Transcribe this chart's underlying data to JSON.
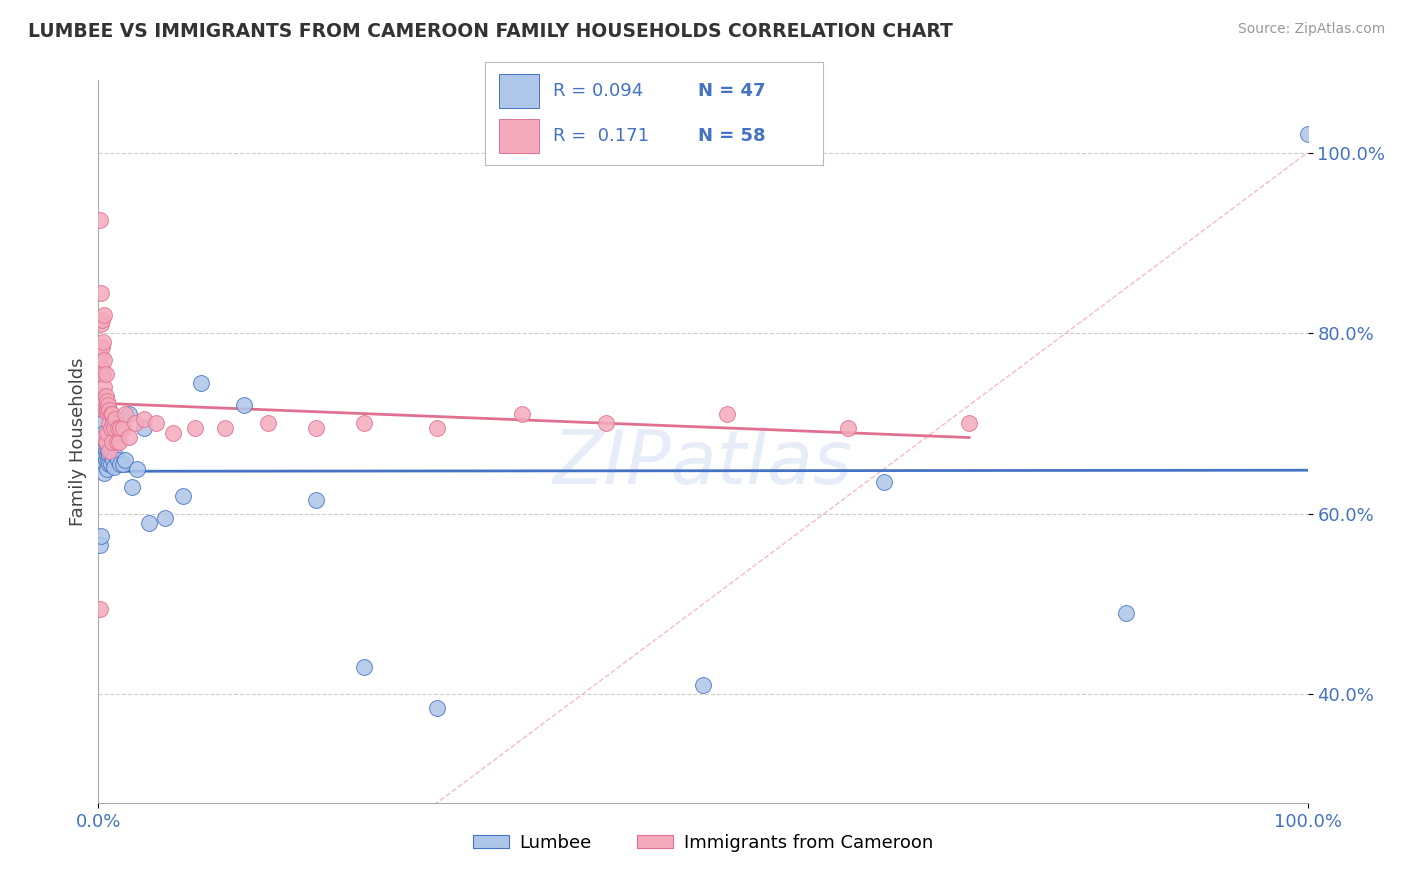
{
  "title": "LUMBEE VS IMMIGRANTS FROM CAMEROON FAMILY HOUSEHOLDS CORRELATION CHART",
  "source": "Source: ZipAtlas.com",
  "ylabel": "Family Households",
  "blue_color": "#aec6e8",
  "pink_color": "#f4aabb",
  "blue_line_color": "#4472c4",
  "pink_line_color": "#e07090",
  "diag_line_color": "#f4aabb",
  "watermark": "ZIPatlas",
  "background_color": "#ffffff",
  "grid_color": "#cccccc",
  "tick_label_color": "#4472c4",
  "title_color": "#333333",
  "lumbee_x": [
    0.001,
    0.002,
    0.003,
    0.003,
    0.004,
    0.004,
    0.004,
    0.005,
    0.005,
    0.005,
    0.006,
    0.006,
    0.006,
    0.007,
    0.007,
    0.007,
    0.008,
    0.008,
    0.008,
    0.009,
    0.009,
    0.01,
    0.01,
    0.011,
    0.012,
    0.013,
    0.014,
    0.016,
    0.018,
    0.02,
    0.022,
    0.025,
    0.028,
    0.032,
    0.038,
    0.042,
    0.055,
    0.07,
    0.085,
    0.12,
    0.18,
    0.22,
    0.28,
    0.5,
    0.65,
    0.85,
    1.0
  ],
  "lumbee_y": [
    0.565,
    0.575,
    0.66,
    0.7,
    0.655,
    0.67,
    0.72,
    0.665,
    0.645,
    0.69,
    0.66,
    0.67,
    0.68,
    0.665,
    0.68,
    0.65,
    0.66,
    0.67,
    0.68,
    0.665,
    0.655,
    0.668,
    0.655,
    0.668,
    0.66,
    0.652,
    0.665,
    0.66,
    0.655,
    0.655,
    0.66,
    0.71,
    0.63,
    0.65,
    0.695,
    0.59,
    0.595,
    0.62,
    0.745,
    0.72,
    0.615,
    0.43,
    0.385,
    0.41,
    0.635,
    0.49,
    1.02
  ],
  "cameroon_x": [
    0.001,
    0.001,
    0.002,
    0.002,
    0.002,
    0.003,
    0.003,
    0.003,
    0.003,
    0.004,
    0.004,
    0.004,
    0.005,
    0.005,
    0.005,
    0.005,
    0.005,
    0.006,
    0.006,
    0.006,
    0.006,
    0.007,
    0.007,
    0.007,
    0.008,
    0.008,
    0.009,
    0.009,
    0.009,
    0.01,
    0.01,
    0.011,
    0.011,
    0.012,
    0.013,
    0.014,
    0.015,
    0.016,
    0.017,
    0.018,
    0.02,
    0.022,
    0.025,
    0.03,
    0.038,
    0.048,
    0.062,
    0.08,
    0.105,
    0.14,
    0.18,
    0.22,
    0.28,
    0.35,
    0.42,
    0.52,
    0.62,
    0.72
  ],
  "cameroon_y": [
    0.925,
    0.495,
    0.845,
    0.81,
    0.775,
    0.815,
    0.785,
    0.76,
    0.73,
    0.79,
    0.755,
    0.72,
    0.77,
    0.74,
    0.715,
    0.685,
    0.82,
    0.755,
    0.73,
    0.715,
    0.68,
    0.725,
    0.715,
    0.69,
    0.72,
    0.71,
    0.715,
    0.7,
    0.67,
    0.71,
    0.695,
    0.71,
    0.68,
    0.7,
    0.695,
    0.705,
    0.68,
    0.695,
    0.68,
    0.695,
    0.695,
    0.71,
    0.685,
    0.7,
    0.705,
    0.7,
    0.69,
    0.695,
    0.695,
    0.7,
    0.695,
    0.7,
    0.695,
    0.71,
    0.7,
    0.71,
    0.695,
    0.7
  ],
  "ytick_values": [
    0.4,
    0.6,
    0.8,
    1.0
  ],
  "ytick_labels": [
    "40.0%",
    "60.0%",
    "80.0%",
    "100.0%"
  ],
  "xlim": [
    0.0,
    1.0
  ],
  "ylim": [
    0.28,
    1.08
  ]
}
